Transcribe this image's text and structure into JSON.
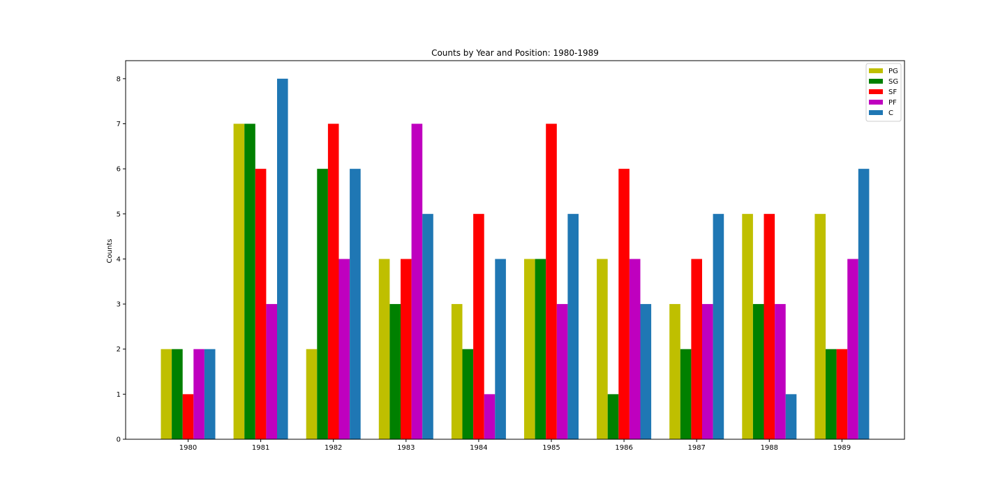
{
  "chart_data": {
    "type": "bar",
    "title": "Counts by Year and Position: 1980-1989",
    "xlabel": "",
    "ylabel": "Counts",
    "categories": [
      "1980",
      "1981",
      "1982",
      "1983",
      "1984",
      "1985",
      "1986",
      "1987",
      "1988",
      "1989"
    ],
    "ylim": [
      0,
      8.4
    ],
    "yticks": [
      0,
      1,
      2,
      3,
      4,
      5,
      6,
      7,
      8
    ],
    "grid": false,
    "legend_position": "top-right",
    "series": [
      {
        "name": "PG",
        "color": "#bfbf00",
        "values": [
          2,
          7,
          2,
          4,
          3,
          4,
          4,
          3,
          5,
          5
        ]
      },
      {
        "name": "SG",
        "color": "#008000",
        "values": [
          2,
          7,
          6,
          3,
          2,
          4,
          1,
          2,
          3,
          2
        ]
      },
      {
        "name": "SF",
        "color": "#ff0000",
        "values": [
          1,
          6,
          7,
          4,
          5,
          7,
          6,
          4,
          5,
          2
        ]
      },
      {
        "name": "PF",
        "color": "#bf00bf",
        "values": [
          2,
          3,
          4,
          7,
          1,
          3,
          4,
          3,
          3,
          4
        ]
      },
      {
        "name": "C",
        "color": "#1f77b4",
        "values": [
          2,
          8,
          6,
          5,
          4,
          5,
          3,
          5,
          1,
          6
        ]
      }
    ]
  }
}
